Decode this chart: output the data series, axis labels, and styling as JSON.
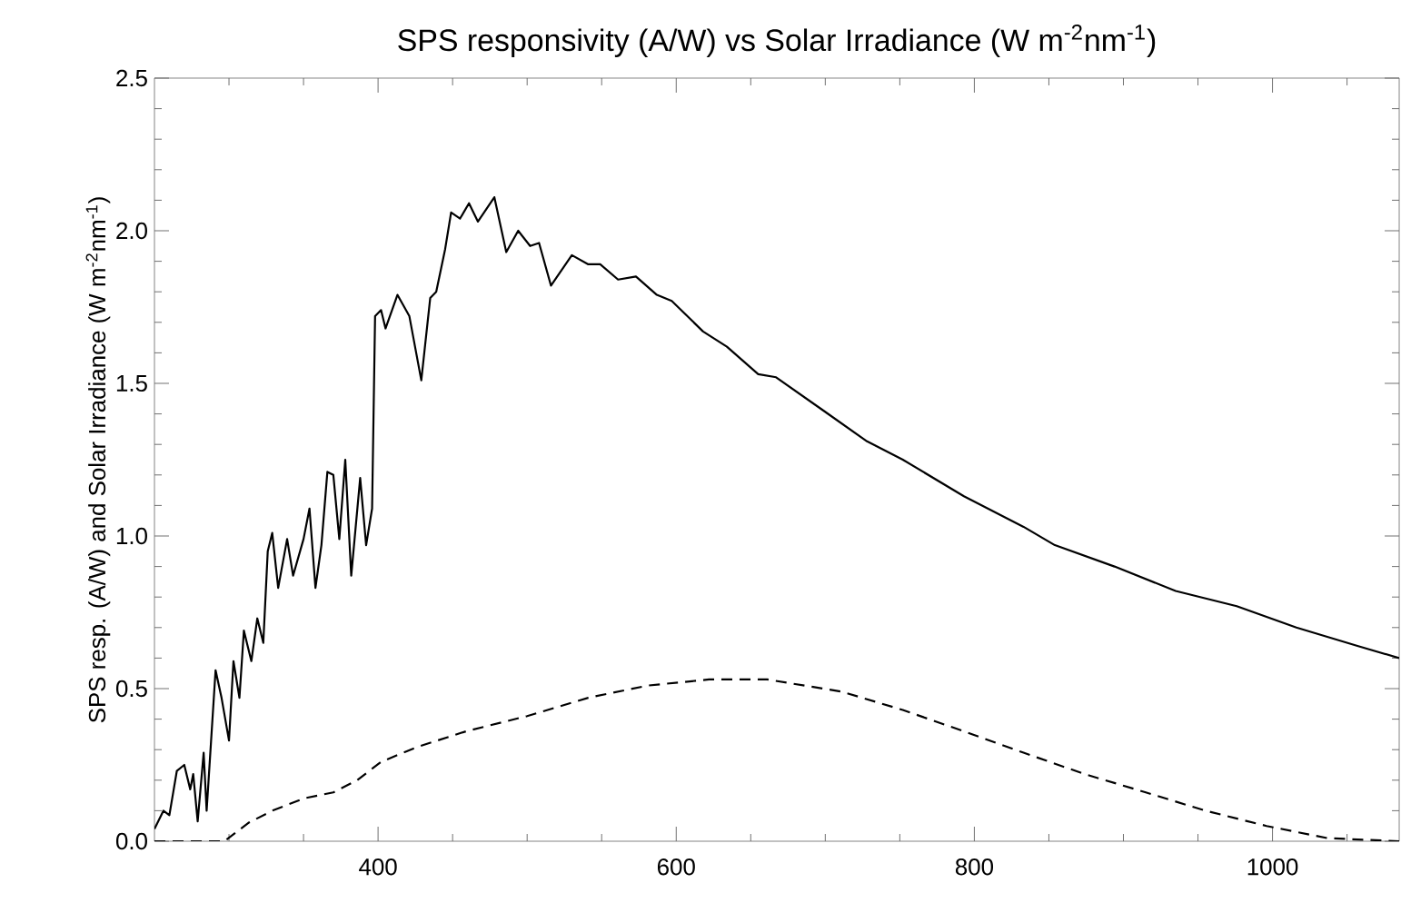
{
  "chart_data": {
    "type": "line",
    "title": "SPS responsivity (A/W) vs Solar Irradiance (W m$^{-2}$nm$^{-1}$)",
    "ylabel": "SPS resp. (A/W) and Solar Irradiance (W m$^{-2}$nm$^{-1}$)",
    "xlim": [
      250,
      1085
    ],
    "ylim": [
      0,
      2.5
    ],
    "xticks": [
      {
        "value": 300,
        "label": null
      },
      {
        "value": 350,
        "label": null
      },
      400,
      {
        "value": 450,
        "label": null
      },
      {
        "value": 500,
        "label": null
      },
      {
        "value": 550,
        "label": null
      },
      600,
      {
        "value": 650,
        "label": null
      },
      {
        "value": 700,
        "label": null
      },
      {
        "value": 750,
        "label": null
      },
      800,
      {
        "value": 850,
        "label": null
      },
      {
        "value": 900,
        "label": null
      },
      {
        "value": 950,
        "label": null
      },
      1000,
      {
        "value": 1050,
        "label": null
      }
    ],
    "yticks": [
      {
        "value": 0,
        "label": "0.0"
      },
      {
        "value": 0.1,
        "label": null
      },
      {
        "value": 0.2,
        "label": null
      },
      {
        "value": 0.3,
        "label": null
      },
      {
        "value": 0.4,
        "label": null
      },
      {
        "value": 0.5,
        "label": "0.5"
      },
      {
        "value": 0.6,
        "label": null
      },
      {
        "value": 0.7,
        "label": null
      },
      {
        "value": 0.8,
        "label": null
      },
      {
        "value": 0.9,
        "label": null
      },
      {
        "value": 1.0,
        "label": "1.0"
      },
      {
        "value": 1.1,
        "label": null
      },
      {
        "value": 1.2,
        "label": null
      },
      {
        "value": 1.3,
        "label": null
      },
      {
        "value": 1.4,
        "label": null
      },
      {
        "value": 1.5,
        "label": "1.5"
      },
      {
        "value": 1.6,
        "label": null
      },
      {
        "value": 1.7,
        "label": null
      },
      {
        "value": 1.8,
        "label": null
      },
      {
        "value": 1.9,
        "label": null
      },
      {
        "value": 2.0,
        "label": "2.0"
      },
      {
        "value": 2.1,
        "label": null
      },
      {
        "value": 2.2,
        "label": null
      },
      {
        "value": 2.3,
        "label": null
      },
      {
        "value": 2.4,
        "label": null
      },
      {
        "value": 2.5,
        "label": "2.5"
      }
    ],
    "grid": false,
    "series": [
      {
        "color": "#000000",
        "line_style": "solid",
        "x": [
          250,
          256,
          260,
          265,
          270,
          274,
          276,
          279,
          283,
          285,
          288,
          291,
          295,
          300,
          303,
          307,
          310,
          315,
          319,
          323,
          326,
          329,
          333,
          339,
          343,
          350,
          354,
          358,
          362,
          366,
          370,
          374,
          378,
          382,
          388,
          392,
          396,
          398,
          402,
          405,
          413,
          421,
          429,
          435,
          439,
          445,
          449,
          455,
          461,
          467,
          478,
          486,
          494,
          502,
          508,
          516,
          530,
          541,
          549,
          561,
          573,
          587,
          597,
          618,
          634,
          655,
          667,
          699,
          728,
          752,
          793,
          833,
          854,
          894,
          935,
          976,
          1016,
          1057,
          1085
        ],
        "values": [
          0.04,
          0.1,
          0.085,
          0.23,
          0.25,
          0.17,
          0.22,
          0.065,
          0.29,
          0.1,
          0.33,
          0.56,
          0.47,
          0.33,
          0.59,
          0.47,
          0.69,
          0.59,
          0.73,
          0.65,
          0.95,
          1.01,
          0.83,
          0.99,
          0.87,
          0.99,
          1.09,
          0.83,
          0.97,
          1.21,
          1.2,
          0.99,
          1.25,
          0.87,
          1.19,
          0.97,
          1.09,
          1.72,
          1.74,
          1.68,
          1.79,
          1.72,
          1.51,
          1.78,
          1.8,
          1.94,
          2.06,
          2.04,
          2.09,
          2.03,
          2.11,
          1.93,
          2.0,
          1.95,
          1.96,
          1.82,
          1.92,
          1.89,
          1.89,
          1.84,
          1.85,
          1.79,
          1.77,
          1.67,
          1.62,
          1.53,
          1.52,
          1.41,
          1.31,
          1.25,
          1.13,
          1.03,
          0.97,
          0.9,
          0.82,
          0.77,
          0.7,
          0.64,
          0.6
        ]
      },
      {
        "color": "#000000",
        "line_style": "dashed",
        "x": [
          250,
          297,
          313,
          329,
          350,
          370,
          386,
          402,
          427,
          459,
          500,
          541,
          581,
          622,
          661,
          711,
          752,
          793,
          833,
          874,
          915,
          955,
          996,
          1037,
          1085
        ],
        "values": [
          0.0,
          0.0,
          0.06,
          0.1,
          0.14,
          0.16,
          0.2,
          0.26,
          0.31,
          0.36,
          0.41,
          0.47,
          0.51,
          0.53,
          0.53,
          0.49,
          0.43,
          0.36,
          0.29,
          0.22,
          0.16,
          0.1,
          0.05,
          0.01,
          0.0
        ]
      }
    ]
  }
}
